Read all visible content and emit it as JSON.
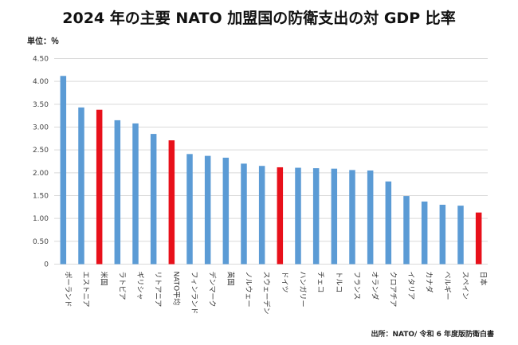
{
  "title": "2024 年の主要 NATO 加盟国の防衛支出の対 GDP 比率",
  "unit_label": "単位：％",
  "source": "出所：NATO/ 令和 6 年度版防衛白書",
  "colors": {
    "default_bar": "#5b9bd5",
    "highlight_bar": "#e8101a",
    "grid": "#d9d9d9"
  },
  "chart_data": {
    "type": "bar",
    "title": "2024 年の主要 NATO 加盟国の防衛支出の対 GDP 比率",
    "ylabel": "単位：％",
    "ylim": [
      0,
      4.5
    ],
    "yticks": [
      "0",
      "0.50",
      "1.00",
      "1.50",
      "2.00",
      "2.50",
      "3.00",
      "3.50",
      "4.00",
      "4.50"
    ],
    "grid": true,
    "categories": [
      "ポーランド",
      "エストニア",
      "米国",
      "ラトビア",
      "ギリシャ",
      "リトアニア",
      "NATO平均",
      "フィンランド",
      "デンマーク",
      "英国",
      "ノルウェー",
      "スウェーデン",
      "ドイツ",
      "ハンガリー",
      "チェコ",
      "トルコ",
      "フランス",
      "オランダ",
      "クロアチア",
      "イタリア",
      "カナダ",
      "ベルギー",
      "スペイン",
      "日本"
    ],
    "values": [
      4.12,
      3.43,
      3.38,
      3.15,
      3.08,
      2.85,
      2.71,
      2.41,
      2.37,
      2.33,
      2.2,
      2.15,
      2.12,
      2.11,
      2.1,
      2.09,
      2.06,
      2.05,
      1.81,
      1.49,
      1.37,
      1.3,
      1.28,
      1.13
    ],
    "highlighted": [
      "米国",
      "NATO平均",
      "ドイツ",
      "日本"
    ]
  }
}
